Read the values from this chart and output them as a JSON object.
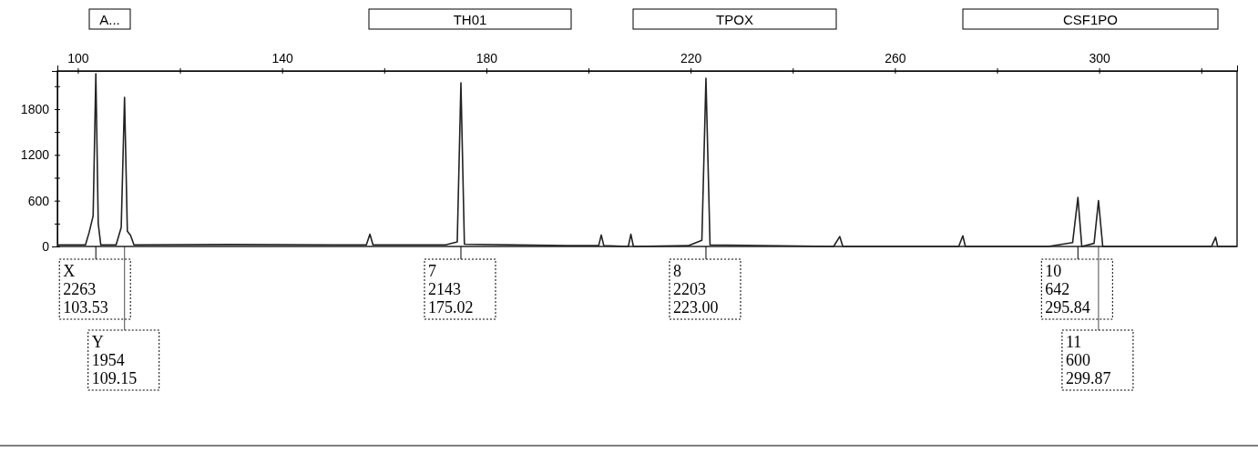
{
  "chart_data": {
    "type": "line",
    "x": [
      96,
      101.5,
      102.2,
      103,
      103.53,
      104,
      104.5,
      107.5,
      108.5,
      109.15,
      109.7,
      110.3,
      111,
      130,
      150,
      156.5,
      157.2,
      157.8,
      172,
      174.3,
      175.02,
      175.7,
      196,
      202,
      202.5,
      203,
      207.8,
      208.3,
      208.8,
      219.5,
      222.2,
      223,
      223.8,
      248,
      249.2,
      249.8,
      272.5,
      273.3,
      273.8,
      290,
      294.8,
      295.84,
      296.6,
      299,
      299.87,
      300.7,
      322,
      322.8,
      323.2,
      327
    ],
    "series": [
      {
        "color": "#222222",
        "values": [
          20,
          20,
          180,
          400,
          2263,
          300,
          20,
          20,
          250,
          1954,
          200,
          150,
          20,
          25,
          20,
          20,
          160,
          20,
          20,
          60,
          2143,
          30,
          10,
          10,
          150,
          10,
          0,
          160,
          0,
          10,
          80,
          2203,
          20,
          0,
          130,
          0,
          0,
          140,
          0,
          0,
          50,
          642,
          0,
          40,
          600,
          0,
          0,
          120,
          0,
          0
        ]
      }
    ],
    "xlim": [
      96,
      327
    ],
    "xticks": [
      100,
      {
        "value": 120,
        "label": null
      },
      140,
      {
        "value": 160,
        "label": null
      },
      180,
      {
        "value": 200,
        "label": null
      },
      220,
      {
        "value": 240,
        "label": null
      },
      260,
      {
        "value": 280,
        "label": null
      },
      300,
      {
        "value": 320,
        "label": null
      }
    ],
    "ylim": [
      0,
      2300
    ],
    "yticks": [
      0,
      {
        "value": 300,
        "label": null
      },
      600,
      {
        "value": 900,
        "label": null
      },
      1200,
      {
        "value": 1500,
        "label": null
      },
      1800,
      {
        "value": 2100,
        "label": null
      }
    ],
    "grid": false,
    "marker": "none",
    "line_style": "solid",
    "annotations": [
      "A...",
      "TH01",
      "TPOX",
      "CSF1PO",
      "X\n2263\n103.53",
      "Y\n1954\n109.15",
      "7\n2143\n175.02",
      "8\n2203\n223.00",
      "10\n642\n295.84",
      "11\n600\n299.87"
    ]
  }
}
